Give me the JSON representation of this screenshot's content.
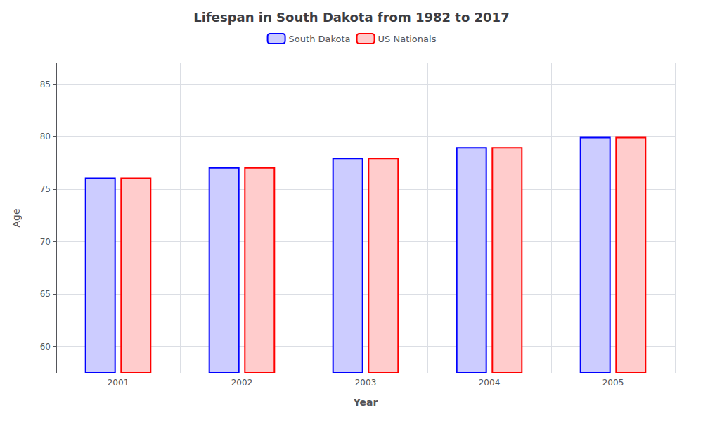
{
  "chart_data": {
    "type": "bar",
    "title": "Lifespan in South Dakota from 1982 to 2017",
    "x_label": "Year",
    "y_label": "Age",
    "categories": [
      "2001",
      "2002",
      "2003",
      "2004",
      "2005"
    ],
    "series": [
      {
        "name": "South Dakota",
        "color": "#0000ff",
        "values": [
          76.1,
          77.1,
          78.0,
          79.0,
          80.0
        ]
      },
      {
        "name": "US Nationals",
        "color": "#ff0000",
        "values": [
          76.1,
          77.1,
          78.0,
          79.0,
          80.0
        ]
      }
    ],
    "ylim": [
      57.5,
      87
    ],
    "yticks": [
      60,
      65,
      70,
      75,
      80,
      85
    ],
    "grid": true,
    "legend": "top"
  }
}
